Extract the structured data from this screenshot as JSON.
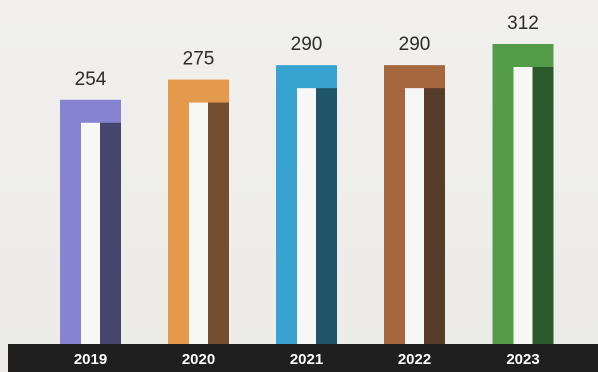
{
  "chart_data": {
    "type": "bar",
    "categories": [
      "2019",
      "2020",
      "2021",
      "2022",
      "2023"
    ],
    "values": [
      254,
      275,
      290,
      290,
      312
    ],
    "colors": [
      {
        "outer": "#8683d0",
        "shade": "#45456e"
      },
      {
        "outer": "#e49a4d",
        "shade": "#734d2e"
      },
      {
        "outer": "#38a3d0",
        "shade": "#1e5568"
      },
      {
        "outer": "#a6673f",
        "shade": "#563c2b"
      },
      {
        "outer": "#549b47",
        "shade": "#2d5a2c"
      }
    ],
    "axis_bar_color": "#1f1f1f",
    "value_label_color": "#2b2b2b",
    "tick_label_color": "#ffffff"
  }
}
